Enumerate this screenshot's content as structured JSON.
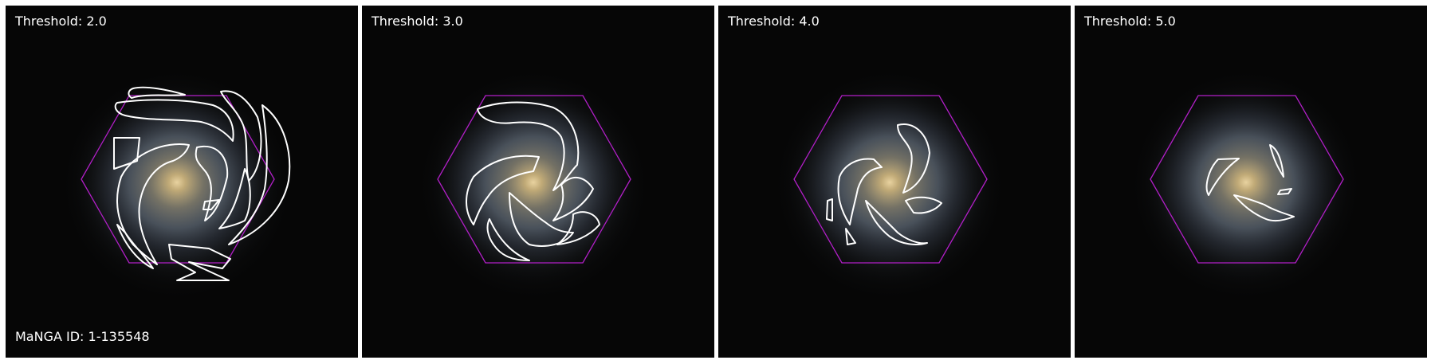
{
  "figure": {
    "manga_id_label": "MaNGA ID: 1-135548",
    "panels": [
      {
        "threshold_label": "Threshold: 2.0"
      },
      {
        "threshold_label": "Threshold: 3.0"
      },
      {
        "threshold_label": "Threshold: 4.0"
      },
      {
        "threshold_label": "Threshold: 5.0"
      }
    ],
    "colors": {
      "background": "#060606",
      "galaxy_core": "#c8b07a",
      "galaxy_disk": "#7a8a9a",
      "ifu_hexagon": "#b21fc8",
      "contour": "#ffffff"
    },
    "icons": [
      "galaxy-image",
      "ifu-hexagon-outline",
      "arm-contour"
    ]
  }
}
